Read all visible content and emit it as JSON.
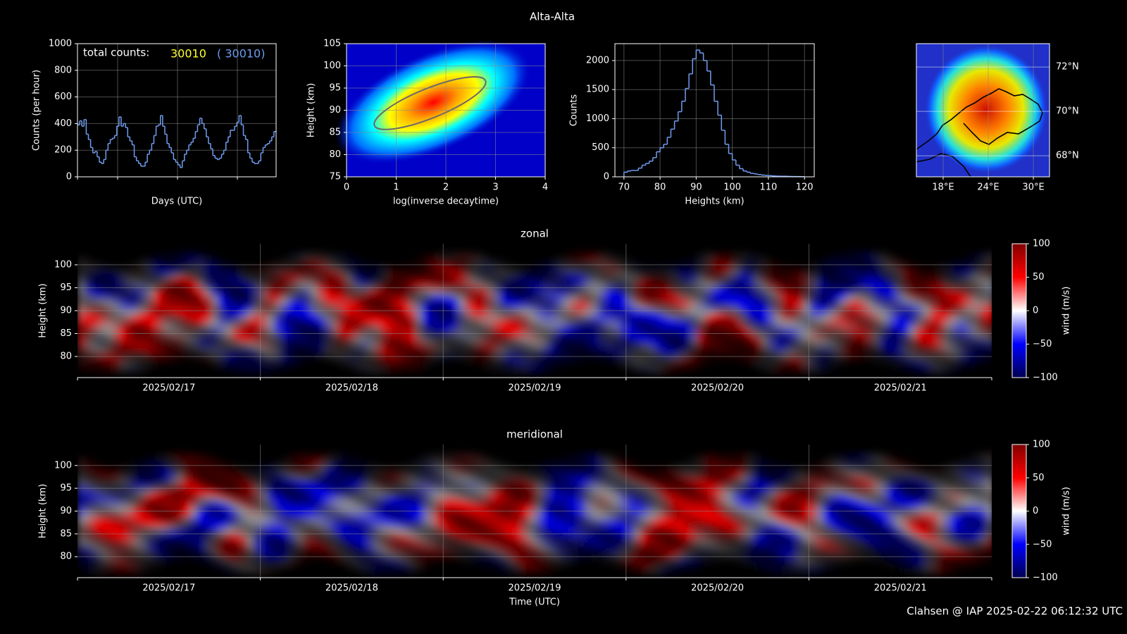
{
  "title": "Alta-Alta",
  "footer": "Clahsen @ IAP 2025-02-22 06:12:32 UTC",
  "chart_data": [
    {
      "type": "line",
      "xlabel": "Days (UTC)",
      "ylabel": "Counts (per hour)",
      "annotations": [
        "total counts:",
        "30010",
        "( 30010)"
      ],
      "annotation_colors": [
        "#ffffff",
        "#ffff33",
        "#6f9cf0"
      ],
      "color": "#6f9cf0",
      "ylim": [
        0,
        1000
      ],
      "yticks": [
        0,
        200,
        400,
        600,
        800,
        1000
      ],
      "grid": true,
      "values": [
        390,
        420,
        380,
        430,
        320,
        280,
        220,
        180,
        190,
        150,
        110,
        100,
        130,
        200,
        250,
        280,
        290,
        310,
        380,
        450,
        380,
        400,
        370,
        300,
        270,
        240,
        150,
        120,
        100,
        80,
        80,
        110,
        170,
        200,
        250,
        310,
        380,
        390,
        460,
        380,
        320,
        250,
        220,
        180,
        130,
        110,
        90,
        70,
        120,
        170,
        200,
        240,
        260,
        290,
        340,
        390,
        440,
        400,
        360,
        300,
        250,
        210,
        160,
        140,
        130,
        140,
        170,
        200,
        260,
        300,
        350,
        350,
        380,
        410,
        460,
        390,
        310,
        280,
        180,
        140,
        110,
        100,
        100,
        120,
        180,
        220,
        240,
        250,
        270,
        300,
        340
      ]
    },
    {
      "type": "density",
      "xlabel": "log(inverse decaytime)",
      "ylabel": "Height (km)",
      "xlim": [
        0,
        4
      ],
      "xticks": [
        0,
        1,
        2,
        3,
        4
      ],
      "ylim": [
        75,
        105
      ],
      "yticks": [
        75,
        80,
        85,
        90,
        95,
        100,
        105
      ],
      "grid": true
    },
    {
      "type": "histogram",
      "xlabel": "Heights (km)",
      "ylabel": "Counts",
      "color": "#6f9cf0",
      "xlim": [
        67.5,
        122.7
      ],
      "xticks": [
        70,
        80,
        90,
        100,
        110,
        120
      ],
      "ylim": [
        0,
        2290
      ],
      "yticks": [
        0,
        500,
        1000,
        1500,
        2000
      ],
      "grid": true,
      "bins": [
        70,
        71,
        72,
        73,
        74,
        75,
        76,
        77,
        78,
        79,
        80,
        81,
        82,
        83,
        84,
        85,
        86,
        87,
        88,
        89,
        90,
        91,
        92,
        93,
        94,
        95,
        96,
        97,
        98,
        99,
        100,
        101,
        102,
        103,
        104,
        105,
        106,
        107,
        108,
        109,
        110,
        111,
        112,
        113,
        114,
        115,
        116,
        117,
        118,
        119,
        120
      ],
      "values": [
        80,
        100,
        110,
        110,
        150,
        200,
        230,
        270,
        330,
        430,
        500,
        560,
        680,
        820,
        960,
        1120,
        1300,
        1520,
        1770,
        2030,
        2180,
        2130,
        2000,
        1820,
        1580,
        1300,
        1060,
        800,
        560,
        400,
        290,
        200,
        140,
        100,
        80,
        60,
        50,
        40,
        30,
        25,
        20,
        15,
        12,
        10,
        10,
        8,
        6,
        5,
        5,
        3
      ]
    },
    {
      "type": "map",
      "xlim": [
        14.44,
        32.15
      ],
      "ylim": [
        67.05,
        73.05
      ],
      "grid": true,
      "xticks": [
        {
          "value": 18,
          "label": "18°E"
        },
        {
          "value": 24,
          "label": "24°E"
        },
        {
          "value": 30,
          "label": "30°E"
        }
      ],
      "yticks": [
        {
          "value": 68,
          "label": "68°N"
        },
        {
          "value": 70,
          "label": "70°N"
        },
        {
          "value": 72,
          "label": "72°N"
        }
      ]
    },
    {
      "type": "wind",
      "title": "zonal",
      "ylabel": "Height (km)",
      "seed": 1,
      "categories": [
        "2025/02/17",
        "2025/02/18",
        "2025/02/19",
        "2025/02/20",
        "2025/02/21"
      ],
      "ylim": [
        75.4,
        104.6
      ],
      "yticks": [
        80,
        85,
        90,
        95,
        100
      ],
      "grid": true,
      "colorbar": {
        "label": "wind (m/s)",
        "ylim": [
          -100,
          100
        ],
        "ticks": [
          {
            "value": -100,
            "label": "−100"
          },
          {
            "value": -50,
            "label": "−50"
          },
          0,
          50,
          100
        ]
      }
    },
    {
      "type": "wind",
      "title": "meridional",
      "ylabel": "Height (km)",
      "xlabel": "Time (UTC)",
      "seed": 2,
      "categories": [
        "2025/02/17",
        "2025/02/18",
        "2025/02/19",
        "2025/02/20",
        "2025/02/21"
      ],
      "ylim": [
        75.4,
        104.6
      ],
      "yticks": [
        80,
        85,
        90,
        95,
        100
      ],
      "grid": true,
      "colorbar": {
        "label": "wind (m/s)",
        "ylim": [
          -100,
          100
        ],
        "ticks": [
          {
            "value": -100,
            "label": "−100"
          },
          {
            "value": -50,
            "label": "−50"
          },
          0,
          50,
          100
        ]
      }
    }
  ]
}
